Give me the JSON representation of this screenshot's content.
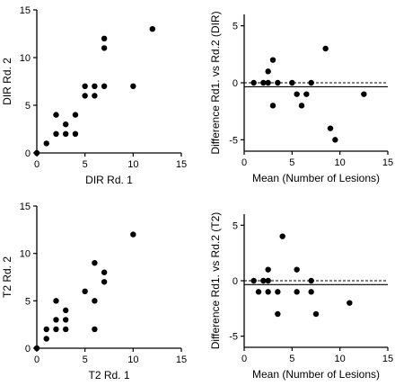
{
  "colors": {
    "ink": "#000000",
    "background": "#ffffff"
  },
  "chart_data": [
    {
      "type": "scatter",
      "xlabel": "DIR Rd. 1",
      "ylabel": "DIR Rd. 2",
      "xlim": [
        0,
        15
      ],
      "ylim": [
        0,
        15
      ],
      "xticks": [
        "0",
        "5",
        "10",
        "15"
      ],
      "yticks": [
        "0",
        "5",
        "10",
        "15"
      ],
      "grid": false,
      "points": [
        {
          "x": 0,
          "y": 0
        },
        {
          "x": 1,
          "y": 1
        },
        {
          "x": 2,
          "y": 2
        },
        {
          "x": 2,
          "y": 4
        },
        {
          "x": 3,
          "y": 2
        },
        {
          "x": 3,
          "y": 3
        },
        {
          "x": 4,
          "y": 2
        },
        {
          "x": 4,
          "y": 4
        },
        {
          "x": 5,
          "y": 6
        },
        {
          "x": 5,
          "y": 7
        },
        {
          "x": 6,
          "y": 6
        },
        {
          "x": 6,
          "y": 7
        },
        {
          "x": 7,
          "y": 7
        },
        {
          "x": 7,
          "y": 11
        },
        {
          "x": 7,
          "y": 12
        },
        {
          "x": 10,
          "y": 7
        },
        {
          "x": 12,
          "y": 13
        }
      ]
    },
    {
      "type": "scatter",
      "xlabel": "Mean (Number of Lesions)",
      "ylabel": "Difference Rd1. vs Rd.2 (DIR)",
      "xlim": [
        0,
        15
      ],
      "ylim": [
        -6,
        6
      ],
      "xticks": [
        "0",
        "5",
        "10",
        "15"
      ],
      "yticks": [
        "-5",
        "0",
        "5"
      ],
      "grid": false,
      "zero_line": 0,
      "bias_line": -0.35,
      "points": [
        {
          "x": 1,
          "y": 0
        },
        {
          "x": 2,
          "y": 0
        },
        {
          "x": 2.5,
          "y": 0
        },
        {
          "x": 2.5,
          "y": 1
        },
        {
          "x": 3,
          "y": 2
        },
        {
          "x": 3,
          "y": -2
        },
        {
          "x": 3.5,
          "y": 0
        },
        {
          "x": 5,
          "y": 0
        },
        {
          "x": 5.5,
          "y": -1
        },
        {
          "x": 6,
          "y": -2
        },
        {
          "x": 6.5,
          "y": -1
        },
        {
          "x": 7,
          "y": 0
        },
        {
          "x": 8.5,
          "y": 3
        },
        {
          "x": 9,
          "y": -4
        },
        {
          "x": 9.5,
          "y": -5
        },
        {
          "x": 12.5,
          "y": -1
        }
      ]
    },
    {
      "type": "scatter",
      "xlabel": "T2 Rd. 1",
      "ylabel": "T2 Rd. 2",
      "xlim": [
        0,
        15
      ],
      "ylim": [
        0,
        15
      ],
      "xticks": [
        "0",
        "5",
        "10",
        "15"
      ],
      "yticks": [
        "0",
        "5",
        "10",
        "15"
      ],
      "grid": false,
      "points": [
        {
          "x": 0,
          "y": 0
        },
        {
          "x": 1,
          "y": 1
        },
        {
          "x": 1,
          "y": 2
        },
        {
          "x": 2,
          "y": 2
        },
        {
          "x": 2,
          "y": 3
        },
        {
          "x": 2,
          "y": 5
        },
        {
          "x": 3,
          "y": 2
        },
        {
          "x": 3,
          "y": 3
        },
        {
          "x": 3,
          "y": 4
        },
        {
          "x": 5,
          "y": 6
        },
        {
          "x": 6,
          "y": 2
        },
        {
          "x": 6,
          "y": 5
        },
        {
          "x": 6,
          "y": 9
        },
        {
          "x": 7,
          "y": 7
        },
        {
          "x": 7,
          "y": 8
        },
        {
          "x": 10,
          "y": 12
        }
      ]
    },
    {
      "type": "scatter",
      "xlabel": "Mean (Number of Lesions)",
      "ylabel": "Difference Rd1. vs Rd.2 (T2)",
      "xlim": [
        0,
        15
      ],
      "ylim": [
        -6,
        6
      ],
      "xticks": [
        "0",
        "5",
        "10",
        "15"
      ],
      "yticks": [
        "-5",
        "0",
        "5"
      ],
      "grid": false,
      "zero_line": 0,
      "bias_line": -0.35,
      "points": [
        {
          "x": 1,
          "y": 0
        },
        {
          "x": 1.5,
          "y": -1
        },
        {
          "x": 2,
          "y": 0
        },
        {
          "x": 2.5,
          "y": 0
        },
        {
          "x": 2.5,
          "y": -1
        },
        {
          "x": 2.5,
          "y": 1
        },
        {
          "x": 3.5,
          "y": -1
        },
        {
          "x": 3.5,
          "y": -3
        },
        {
          "x": 4,
          "y": 4
        },
        {
          "x": 5.5,
          "y": 1
        },
        {
          "x": 5.5,
          "y": -1
        },
        {
          "x": 7,
          "y": 0
        },
        {
          "x": 7,
          "y": -1
        },
        {
          "x": 7.5,
          "y": -3
        },
        {
          "x": 11,
          "y": -2
        }
      ]
    }
  ]
}
